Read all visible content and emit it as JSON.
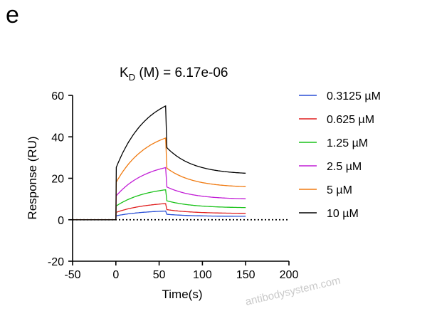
{
  "panel_label": "e",
  "watermark": "antibodysystem.com",
  "chart_data": {
    "type": "line",
    "title": "K_D (M) = 6.17e-06",
    "title_parts": {
      "k": "K",
      "sub": "D",
      "rest": " (M) = 6.17e-06"
    },
    "xlabel": "Time(s)",
    "ylabel": "Response (RU)",
    "xlim": [
      -50,
      200
    ],
    "ylim": [
      -20,
      60
    ],
    "xticks": [
      -50,
      0,
      50,
      100,
      150,
      200
    ],
    "yticks": [
      -20,
      0,
      20,
      40,
      60
    ],
    "grid": false,
    "legend_position": "right",
    "baseline": {
      "y": 0,
      "style": "dotted",
      "from": -50,
      "to": 200
    },
    "model": {
      "t0": 0,
      "t_end_assoc": 58,
      "t_end": 150,
      "kobs": 0.028,
      "kd": 0.015,
      "rapid_fraction": 0.45,
      "dissoc_residual_fraction": 0.39
    },
    "series": [
      {
        "name": "0.3125 µM",
        "color": "#2a4fd6",
        "peak": 4.2,
        "final": 1.6
      },
      {
        "name": "0.625 µM",
        "color": "#e02020",
        "peak": 7.8,
        "final": 3.0
      },
      {
        "name": "1.25 µM",
        "color": "#19c219",
        "peak": 14.5,
        "final": 5.7
      },
      {
        "name": "2.5 µM",
        "color": "#c21ed6",
        "peak": 25.2,
        "final": 9.8
      },
      {
        "name": "5 µM",
        "color": "#f07a10",
        "peak": 39.5,
        "final": 15.5
      },
      {
        "name": "10 µM",
        "color": "#000000",
        "peak": 55.0,
        "final": 21.8
      }
    ]
  }
}
